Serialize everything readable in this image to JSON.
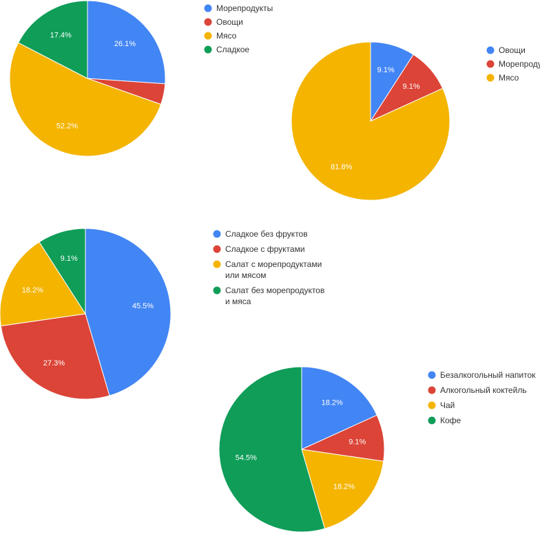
{
  "colors": {
    "blue": "#4285F4",
    "red": "#DB4437",
    "yellow": "#F4B400",
    "green": "#0F9D58"
  },
  "chart_data": [
    {
      "type": "pie",
      "legend_position": "right",
      "series": [
        {
          "name": "Морепродукты",
          "value": 26.1,
          "label": "26.1%",
          "color": "#4285F4"
        },
        {
          "name": "Овощи",
          "value": 4.3,
          "label": "",
          "color": "#DB4437"
        },
        {
          "name": "Мясо",
          "value": 52.2,
          "label": "52.2%",
          "color": "#F4B400"
        },
        {
          "name": "Сладкое",
          "value": 17.4,
          "label": "17.4%",
          "color": "#0F9D58"
        }
      ]
    },
    {
      "type": "pie",
      "legend_position": "right",
      "series": [
        {
          "name": "Овощи",
          "value": 9.1,
          "label": "9.1%",
          "color": "#4285F4"
        },
        {
          "name": "Морепроду",
          "value": 9.1,
          "label": "9.1%",
          "color": "#DB4437"
        },
        {
          "name": "Мясо",
          "value": 81.8,
          "label": "81.8%",
          "color": "#F4B400"
        }
      ]
    },
    {
      "type": "pie",
      "legend_position": "right",
      "series": [
        {
          "name": [
            "Сладкое без фруктов"
          ],
          "value": 45.5,
          "label": "45.5%",
          "color": "#4285F4"
        },
        {
          "name": [
            "Сладкое с фруктами"
          ],
          "value": 27.3,
          "label": "27.3%",
          "color": "#DB4437"
        },
        {
          "name": [
            "Салат с морепродуктами",
            "или мясом"
          ],
          "value": 18.2,
          "label": "18.2%",
          "color": "#F4B400"
        },
        {
          "name": [
            "Салат без морепродуктов",
            "и мяса"
          ],
          "value": 9.1,
          "label": "9.1%",
          "color": "#0F9D58"
        }
      ]
    },
    {
      "type": "pie",
      "legend_position": "right",
      "series": [
        {
          "name": "Безалкогольный напиток",
          "value": 18.2,
          "label": "18.2%",
          "color": "#4285F4"
        },
        {
          "name": "Алкогольный коктейль",
          "value": 9.1,
          "label": "9.1%",
          "color": "#DB4437"
        },
        {
          "name": "Чай",
          "value": 18.2,
          "label": "18.2%",
          "color": "#F4B400"
        },
        {
          "name": "Кофе",
          "value": 54.5,
          "label": "54.5%",
          "color": "#0F9D58"
        }
      ]
    }
  ]
}
